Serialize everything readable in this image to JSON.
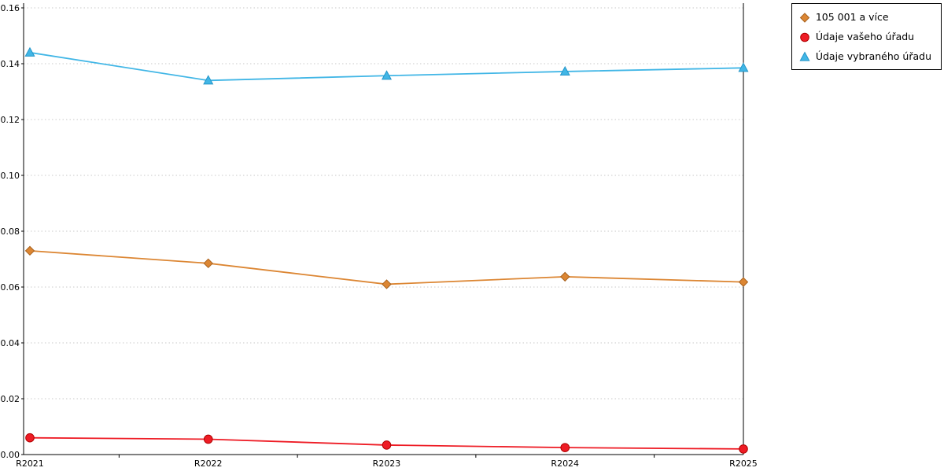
{
  "chart_data": {
    "type": "line",
    "title": "",
    "xlabel": "",
    "ylabel": "",
    "categories": [
      "R2021",
      "R2022",
      "R2023",
      "R2024",
      "R2025"
    ],
    "series": [
      {
        "name": "105 001 a více",
        "marker": "diamond",
        "color": "#DC8633",
        "edge_color": "#A8621E",
        "values": [
          0.073,
          0.0685,
          0.061,
          0.0637,
          0.0618
        ]
      },
      {
        "name": "Údaje vašeho úřadu",
        "marker": "circle",
        "color": "#EE1C25",
        "edge_color": "#B00000",
        "values": [
          0.006,
          0.0055,
          0.0034,
          0.0025,
          0.002
        ]
      },
      {
        "name": "Údaje vybraného úřadu",
        "marker": "triangle",
        "color": "#41B6E6",
        "edge_color": "#2495C8",
        "values": [
          0.144,
          0.134,
          0.1357,
          0.1372,
          0.1385
        ]
      }
    ],
    "ylim": [
      0,
      0.16
    ],
    "ytick_step": 0.02,
    "ytick_format_decimals": 2,
    "grid": "horizontal-dotted",
    "legend_position": "top-right"
  }
}
